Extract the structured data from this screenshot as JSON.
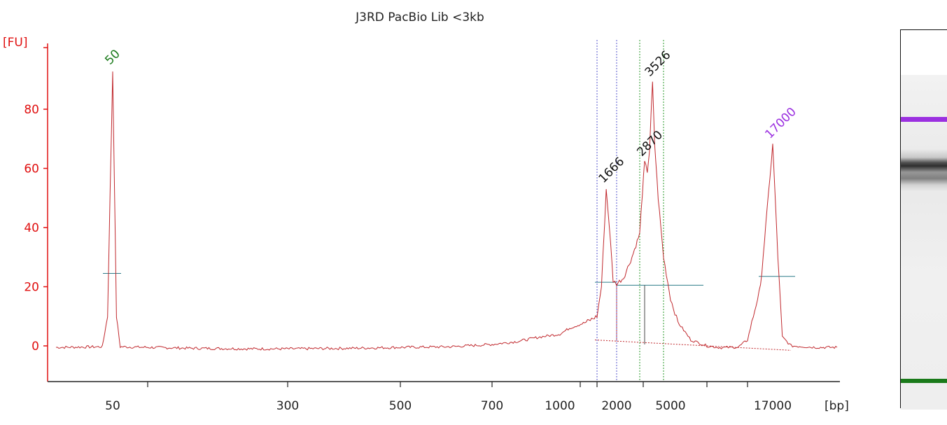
{
  "title": "J3RD PacBio Lib <3kb",
  "colors": {
    "trace": "#c0282d",
    "axis": "#e01010",
    "marker_lower": "#1a7a1a",
    "marker_upper": "#9b30e0",
    "peak_label": "#111111",
    "baseline": "#2e7d8a",
    "region_line_blue": "#5555cc",
    "region_line_green": "#2a9a2a"
  },
  "chart_data": {
    "type": "line",
    "title": "J3RD PacBio Lib <3kb",
    "ylabel": "[FU]",
    "xlabel": "[bp]",
    "ylim": [
      -12,
      102
    ],
    "yticks": [
      0,
      20,
      40,
      60,
      80
    ],
    "xtick_labels": [
      "50",
      "300",
      "500",
      "700",
      "1000",
      "2000",
      "5000",
      "17000"
    ],
    "x_unit": "[bp]",
    "peaks": [
      {
        "label": "50",
        "bp": 50,
        "fu": 93,
        "kind": "lower-marker"
      },
      {
        "label": "1666",
        "bp": 1666,
        "fu": 53,
        "kind": "sample"
      },
      {
        "label": "2870",
        "bp": 2870,
        "fu": 62,
        "kind": "sample"
      },
      {
        "label": "3526",
        "bp": 3526,
        "fu": 89,
        "kind": "sample"
      },
      {
        "label": "17000",
        "bp": 17000,
        "fu": 68,
        "kind": "upper-marker"
      }
    ],
    "trace": [
      [
        40,
        -0.5
      ],
      [
        48,
        -0.3
      ],
      [
        49,
        10
      ],
      [
        50,
        93
      ],
      [
        51,
        10
      ],
      [
        52,
        -0.3
      ],
      [
        60,
        -0.5
      ],
      [
        100,
        -0.8
      ],
      [
        200,
        -1
      ],
      [
        300,
        -1
      ],
      [
        400,
        -0.8
      ],
      [
        500,
        -0.5
      ],
      [
        600,
        -0.3
      ],
      [
        700,
        0.5
      ],
      [
        800,
        1.5
      ],
      [
        900,
        3
      ],
      [
        1000,
        4
      ],
      [
        1100,
        6
      ],
      [
        1300,
        8
      ],
      [
        1450,
        10
      ],
      [
        1550,
        20
      ],
      [
        1666,
        53
      ],
      [
        1750,
        40
      ],
      [
        1850,
        22
      ],
      [
        1950,
        21
      ],
      [
        2100,
        23
      ],
      [
        2300,
        30
      ],
      [
        2500,
        38
      ],
      [
        2700,
        52
      ],
      [
        2870,
        62
      ],
      [
        3100,
        59
      ],
      [
        3300,
        66
      ],
      [
        3526,
        89
      ],
      [
        3700,
        68
      ],
      [
        4000,
        50
      ],
      [
        4500,
        30
      ],
      [
        5000,
        16
      ],
      [
        5500,
        8
      ],
      [
        6500,
        2
      ],
      [
        8000,
        0
      ],
      [
        10000,
        -0.6
      ],
      [
        13000,
        -0.4
      ],
      [
        15000,
        2
      ],
      [
        16000,
        20
      ],
      [
        17000,
        68
      ],
      [
        17800,
        30
      ],
      [
        18500,
        3
      ],
      [
        20000,
        0
      ],
      [
        25000,
        -0.5
      ],
      [
        30000,
        -0.5
      ]
    ],
    "region_lines_bp": [
      1450,
      1950,
      2500,
      4500
    ],
    "legend": "none",
    "grid": false
  }
}
